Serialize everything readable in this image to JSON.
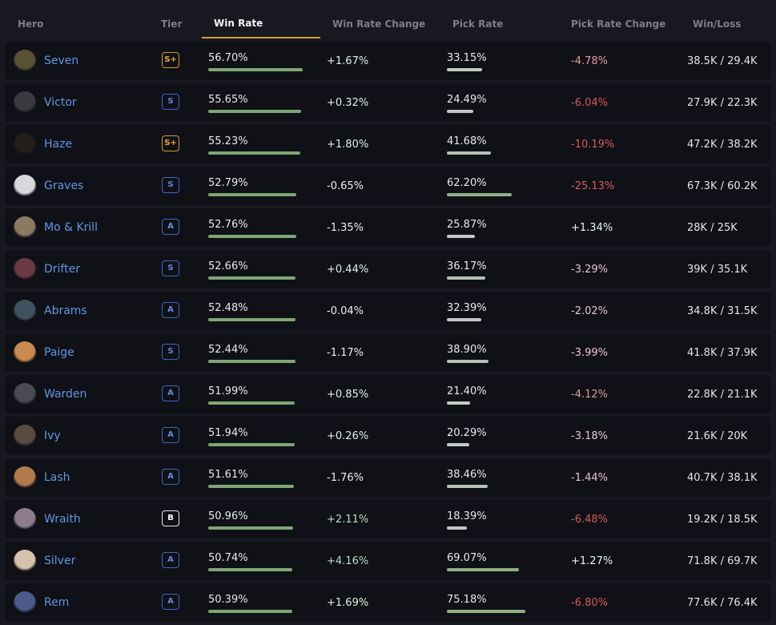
{
  "header": {
    "hero": "Hero",
    "tier": "Tier",
    "win_rate": "Win Rate",
    "win_rate_change": "Win Rate Change",
    "pick_rate": "Pick Rate",
    "pick_rate_change": "Pick Rate Change",
    "win_loss": "Win/Loss",
    "sorted_by": "Win Rate"
  },
  "colors": {
    "sort_underline": "#d49a3c",
    "hero_name": "#5e97e2",
    "tier_s_plus": "#eeaa32",
    "tier_s_a": "#5b8de0",
    "tier_b": "#ffffff",
    "win_bar": "#7fa675",
    "pick_bar": "#c3c9c2",
    "negative_change": "#d9585a"
  },
  "rows": [
    {
      "hero": "Seven",
      "icon": "seven-portrait-icon",
      "avatar_color": "#5a5232",
      "tier": "S+",
      "win_rate": "56.70%",
      "win_rate_value": 56.7,
      "win_rate_change": "+1.67%",
      "pick_rate": "33.15%",
      "pick_rate_value": 33.15,
      "pick_rate_change": "-4.78%",
      "win_loss": "38.5K / 29.4K"
    },
    {
      "hero": "Victor",
      "icon": "victor-portrait-icon",
      "avatar_color": "#3a3a40",
      "tier": "S",
      "win_rate": "55.65%",
      "win_rate_value": 55.65,
      "win_rate_change": "+0.32%",
      "pick_rate": "24.49%",
      "pick_rate_value": 24.49,
      "pick_rate_change": "-6.04%",
      "win_loss": "27.9K / 22.3K"
    },
    {
      "hero": "Haze",
      "icon": "haze-portrait-icon",
      "avatar_color": "#221e1a",
      "tier": "S+",
      "win_rate": "55.23%",
      "win_rate_value": 55.23,
      "win_rate_change": "+1.80%",
      "pick_rate": "41.68%",
      "pick_rate_value": 41.68,
      "pick_rate_change": "-10.19%",
      "win_loss": "47.2K / 38.2K"
    },
    {
      "hero": "Graves",
      "icon": "graves-portrait-icon",
      "avatar_color": "#d8d8dc",
      "tier": "S",
      "win_rate": "52.79%",
      "win_rate_value": 52.79,
      "win_rate_change": "-0.65%",
      "pick_rate": "62.20%",
      "pick_rate_value": 62.2,
      "pick_rate_change": "-25.13%",
      "win_loss": "67.3K / 60.2K"
    },
    {
      "hero": "Mo & Krill",
      "icon": "mo-krill-portrait-icon",
      "avatar_color": "#8a7a62",
      "tier": "A",
      "win_rate": "52.76%",
      "win_rate_value": 52.76,
      "win_rate_change": "-1.35%",
      "pick_rate": "25.87%",
      "pick_rate_value": 25.87,
      "pick_rate_change": "+1.34%",
      "win_loss": "28K / 25K"
    },
    {
      "hero": "Drifter",
      "icon": "drifter-portrait-icon",
      "avatar_color": "#6b3a44",
      "tier": "S",
      "win_rate": "52.66%",
      "win_rate_value": 52.66,
      "win_rate_change": "+0.44%",
      "pick_rate": "36.17%",
      "pick_rate_value": 36.17,
      "pick_rate_change": "-3.29%",
      "win_loss": "39K / 35.1K"
    },
    {
      "hero": "Abrams",
      "icon": "abrams-portrait-icon",
      "avatar_color": "#3e5260",
      "tier": "A",
      "win_rate": "52.48%",
      "win_rate_value": 52.48,
      "win_rate_change": "-0.04%",
      "pick_rate": "32.39%",
      "pick_rate_value": 32.39,
      "pick_rate_change": "-2.02%",
      "win_loss": "34.8K / 31.5K"
    },
    {
      "hero": "Paige",
      "icon": "paige-portrait-icon",
      "avatar_color": "#c88a4e",
      "tier": "S",
      "win_rate": "52.44%",
      "win_rate_value": 52.44,
      "win_rate_change": "-1.17%",
      "pick_rate": "38.90%",
      "pick_rate_value": 38.9,
      "pick_rate_change": "-3.99%",
      "win_loss": "41.8K / 37.9K"
    },
    {
      "hero": "Warden",
      "icon": "warden-portrait-icon",
      "avatar_color": "#4a4a52",
      "tier": "A",
      "win_rate": "51.99%",
      "win_rate_value": 51.99,
      "win_rate_change": "+0.85%",
      "pick_rate": "21.40%",
      "pick_rate_value": 21.4,
      "pick_rate_change": "-4.12%",
      "win_loss": "22.8K / 21.1K"
    },
    {
      "hero": "Ivy",
      "icon": "ivy-portrait-icon",
      "avatar_color": "#5a4a42",
      "tier": "A",
      "win_rate": "51.94%",
      "win_rate_value": 51.94,
      "win_rate_change": "+0.26%",
      "pick_rate": "20.29%",
      "pick_rate_value": 20.29,
      "pick_rate_change": "-3.18%",
      "win_loss": "21.6K / 20K"
    },
    {
      "hero": "Lash",
      "icon": "lash-portrait-icon",
      "avatar_color": "#b07a4c",
      "tier": "A",
      "win_rate": "51.61%",
      "win_rate_value": 51.61,
      "win_rate_change": "-1.76%",
      "pick_rate": "38.46%",
      "pick_rate_value": 38.46,
      "pick_rate_change": "-1.44%",
      "win_loss": "40.7K / 38.1K"
    },
    {
      "hero": "Wraith",
      "icon": "wraith-portrait-icon",
      "avatar_color": "#8e7c8a",
      "tier": "B",
      "win_rate": "50.96%",
      "win_rate_value": 50.96,
      "win_rate_change": "+2.11%",
      "pick_rate": "18.39%",
      "pick_rate_value": 18.39,
      "pick_rate_change": "-6.48%",
      "win_loss": "19.2K / 18.5K"
    },
    {
      "hero": "Silver",
      "icon": "silver-portrait-icon",
      "avatar_color": "#d6c2aa",
      "tier": "A",
      "win_rate": "50.74%",
      "win_rate_value": 50.74,
      "win_rate_change": "+4.16%",
      "pick_rate": "69.07%",
      "pick_rate_value": 69.07,
      "pick_rate_change": "+1.27%",
      "win_loss": "71.8K / 69.7K"
    },
    {
      "hero": "Rem",
      "icon": "rem-portrait-icon",
      "avatar_color": "#4a5a8a",
      "tier": "A",
      "win_rate": "50.39%",
      "win_rate_value": 50.39,
      "win_rate_change": "+1.69%",
      "pick_rate": "75.18%",
      "pick_rate_value": 75.18,
      "pick_rate_change": "-6.80%",
      "win_loss": "77.6K / 76.4K"
    }
  ]
}
